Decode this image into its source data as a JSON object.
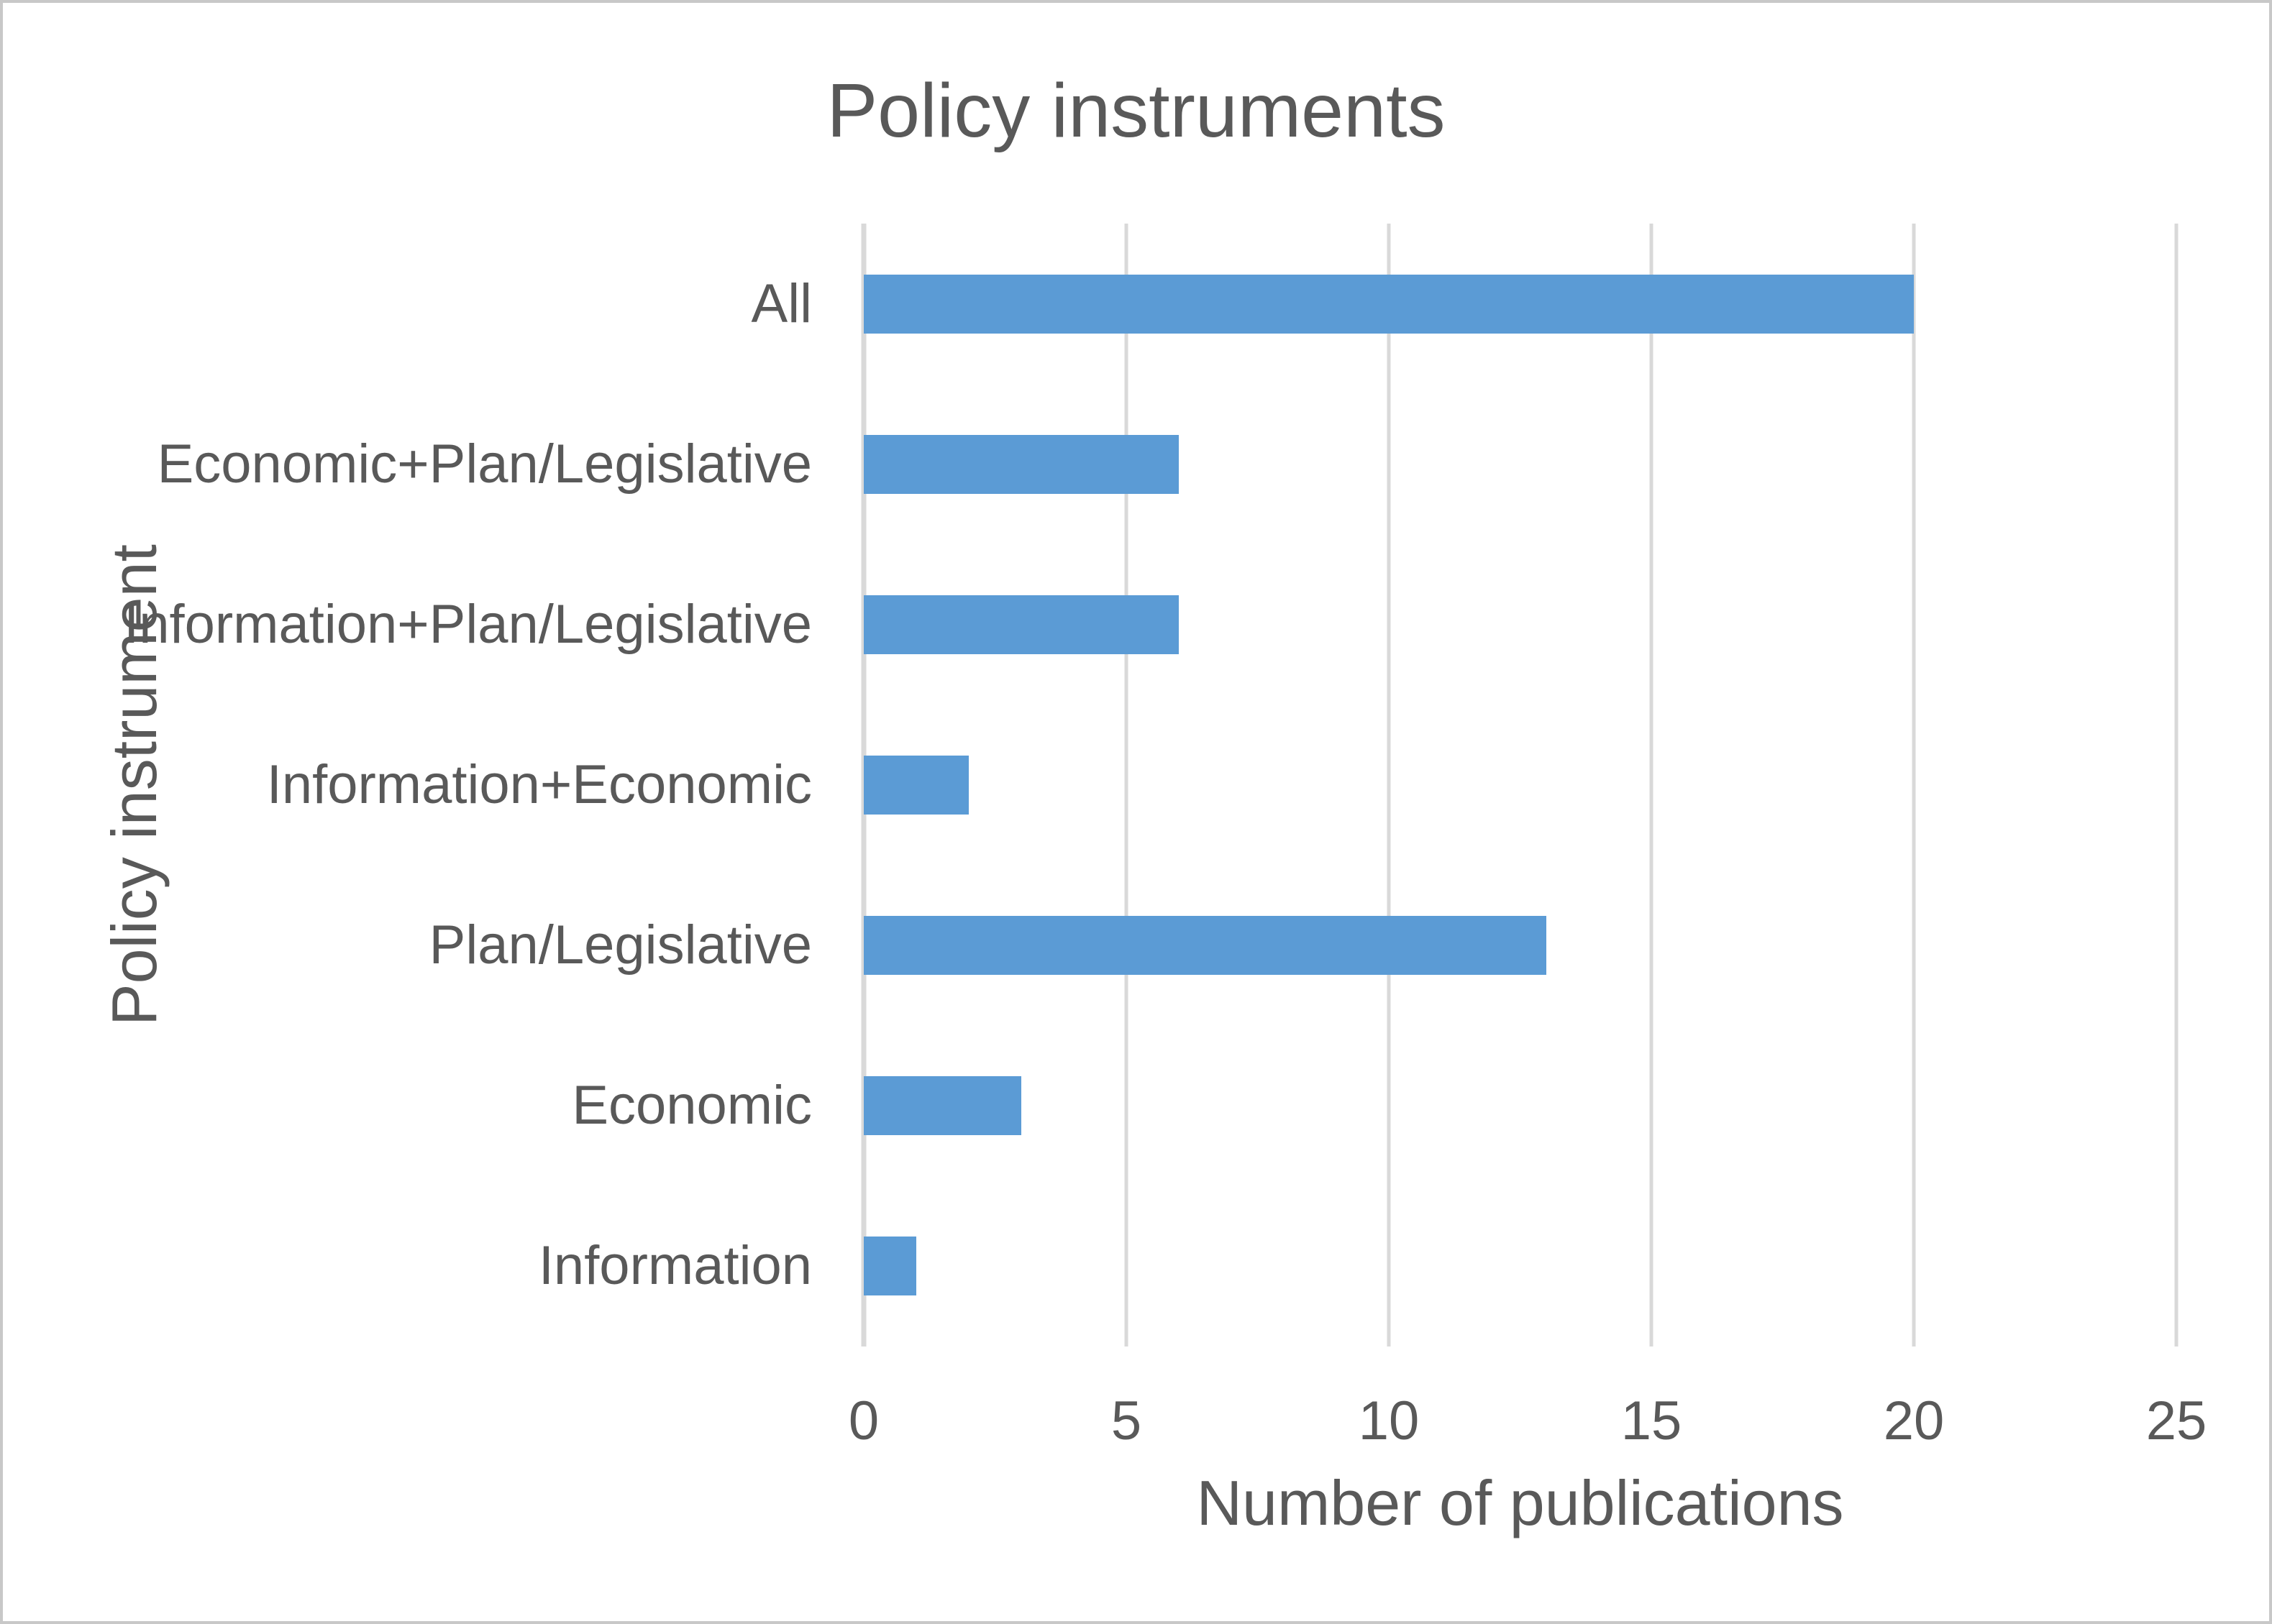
{
  "chart_data": {
    "type": "bar",
    "orientation": "horizontal",
    "title": "Policy instruments",
    "xlabel": "Number of publications",
    "ylabel": "Policy instrument",
    "categories": [
      "All",
      "Economic+Plan/Legislative",
      "Information+Plan/Legislative",
      "Information+Economic",
      "Plan/Legislative",
      "Economic",
      "Information"
    ],
    "values": [
      20,
      6,
      6,
      2,
      13,
      3,
      1
    ],
    "xlim": [
      0,
      25
    ],
    "xticks": [
      0,
      5,
      10,
      15,
      20,
      25
    ],
    "grid": true,
    "legend": false,
    "colors": {
      "bar": "#5B9BD5",
      "gridline": "#D9D9D9",
      "axis_line": "#D9D9D9",
      "text": "#595959",
      "border": "#C8C8C8",
      "background": "#FFFFFF"
    }
  }
}
